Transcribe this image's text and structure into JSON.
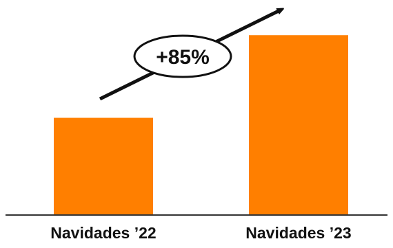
{
  "chart_data": {
    "type": "bar",
    "categories": [
      "Navidades ’22",
      "Navidades ’23"
    ],
    "values": [
      100,
      185
    ],
    "ylim": [
      0,
      200
    ],
    "annotation": "+85%",
    "colors": {
      "bar": "#ff7f00",
      "axis": "#333333",
      "arrow": "#111111"
    }
  }
}
